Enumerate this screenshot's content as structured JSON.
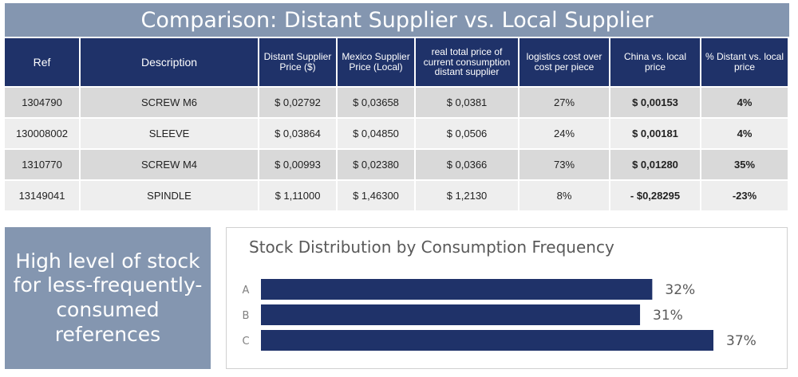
{
  "header": {
    "title": "Comparison: Distant Supplier vs. Local Supplier"
  },
  "table": {
    "columns": [
      "Ref",
      "Description",
      "Distant Supplier Price ($)",
      "Mexico Supplier Price (Local)",
      "real total price of current consumption distant supplier",
      "logistics cost over cost per piece",
      "China vs. local price",
      "% Distant vs. local price"
    ],
    "rows": [
      {
        "ref": "1304790",
        "description": "SCREW M6",
        "distant_price": "$ 0,02792",
        "local_price": "$ 0,03658",
        "real_total": "$ 0,0381",
        "logistics": "27%",
        "china_vs_local": "$ 0,00153",
        "pct": "4%"
      },
      {
        "ref": "130008002",
        "description": "SLEEVE",
        "distant_price": "$ 0,03864",
        "local_price": "$ 0,04850",
        "real_total": "$ 0,0506",
        "logistics": "24%",
        "china_vs_local": "$ 0,00181",
        "pct": "4%"
      },
      {
        "ref": "1310770",
        "description": "SCREW M4",
        "distant_price": "$ 0,00993",
        "local_price": "$ 0,02380",
        "real_total": "$ 0,0366",
        "logistics": "73%",
        "china_vs_local": "$ 0,01280",
        "pct": "35%"
      },
      {
        "ref": "13149041",
        "description": "SPINDLE",
        "distant_price": "$ 1,11000",
        "local_price": "$ 1,46300",
        "real_total": "$ 1,2130",
        "logistics": "8%",
        "china_vs_local": "- $0,28295",
        "pct": "-23%"
      }
    ]
  },
  "callout": {
    "text": "High level of stock for less-frequently-consumed references"
  },
  "chart_data": {
    "type": "bar",
    "orientation": "horizontal",
    "title": "Stock Distribution by Consumption Frequency",
    "categories": [
      "A",
      "B",
      "C"
    ],
    "values": [
      32,
      31,
      37
    ],
    "value_labels": [
      "32%",
      "31%",
      "37%"
    ],
    "xlim": [
      0,
      37
    ],
    "grid": false,
    "bar_color": "#1f3269"
  },
  "colors": {
    "header_bg": "#1f3269",
    "accent_bg": "#8496b0"
  }
}
